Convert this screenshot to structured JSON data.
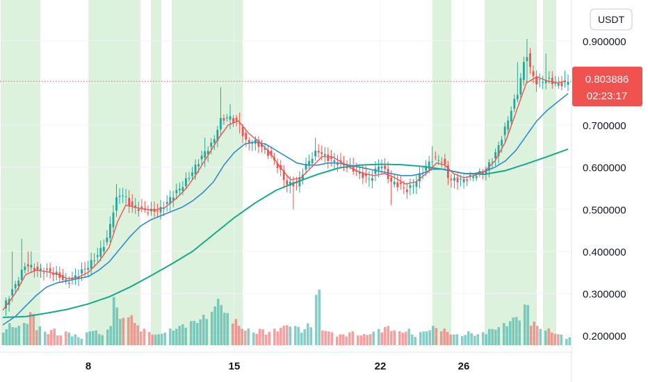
{
  "chart_data": {
    "type": "candlestick",
    "unit_label": "USDT",
    "ylim": [
      0.18,
      0.97
    ],
    "y_ticks": [
      "0.900000",
      "0.800000",
      "0.700000",
      "0.600000",
      "0.500000",
      "0.400000",
      "0.300000",
      "0.200000"
    ],
    "y_tick_values": [
      0.9,
      0.8,
      0.7,
      0.6,
      0.5,
      0.4,
      0.3,
      0.2
    ],
    "x_range": [
      3.8,
      31.2
    ],
    "x_ticks": [
      {
        "label": "8",
        "x": 8
      },
      {
        "label": "15",
        "x": 15
      },
      {
        "label": "22",
        "x": 22
      },
      {
        "label": "26",
        "x": 26
      }
    ],
    "current_price": "0.803886",
    "current_price_value": 0.803886,
    "countdown": "02:23:17",
    "colors": {
      "up": "#26a69a",
      "down": "#ef5350",
      "ma_short": "#ef5350",
      "ma_mid": "#2f8bcc",
      "ma_long": "#17a98b",
      "highlight": "#ddf2dd",
      "grid": "#f0f3fa"
    },
    "highlight_bands": [
      [
        3.8,
        5.7
      ],
      [
        8,
        10.5
      ],
      [
        11,
        11.5
      ],
      [
        12,
        15.4
      ],
      [
        24.5,
        25.4
      ],
      [
        27,
        29.5
      ],
      [
        29.8,
        30.5
      ],
      [
        30.8,
        31.0
      ]
    ],
    "close_path": [
      [
        3.9,
        0.265
      ],
      [
        4.5,
        0.32
      ],
      [
        5.0,
        0.37
      ],
      [
        5.5,
        0.355
      ],
      [
        6.0,
        0.355
      ],
      [
        6.5,
        0.345
      ],
      [
        7.0,
        0.325
      ],
      [
        7.5,
        0.345
      ],
      [
        8.0,
        0.365
      ],
      [
        8.5,
        0.395
      ],
      [
        8.9,
        0.43
      ],
      [
        9.3,
        0.52
      ],
      [
        9.6,
        0.54
      ],
      [
        10.0,
        0.51
      ],
      [
        10.5,
        0.5
      ],
      [
        11.0,
        0.495
      ],
      [
        11.5,
        0.5
      ],
      [
        12.0,
        0.53
      ],
      [
        12.5,
        0.555
      ],
      [
        13.0,
        0.59
      ],
      [
        13.5,
        0.63
      ],
      [
        14.0,
        0.66
      ],
      [
        14.3,
        0.71
      ],
      [
        14.7,
        0.72
      ],
      [
        15.0,
        0.71
      ],
      [
        15.3,
        0.7
      ],
      [
        15.5,
        0.66
      ],
      [
        16.0,
        0.66
      ],
      [
        16.5,
        0.64
      ],
      [
        17.0,
        0.61
      ],
      [
        17.5,
        0.56
      ],
      [
        18.0,
        0.56
      ],
      [
        18.5,
        0.61
      ],
      [
        19.0,
        0.64
      ],
      [
        19.5,
        0.62
      ],
      [
        20.0,
        0.61
      ],
      [
        20.5,
        0.6
      ],
      [
        21.0,
        0.585
      ],
      [
        21.5,
        0.57
      ],
      [
        22.0,
        0.61
      ],
      [
        22.5,
        0.565
      ],
      [
        23.0,
        0.555
      ],
      [
        23.3,
        0.545
      ],
      [
        23.7,
        0.565
      ],
      [
        24.0,
        0.59
      ],
      [
        24.5,
        0.62
      ],
      [
        25.0,
        0.615
      ],
      [
        25.3,
        0.57
      ],
      [
        25.6,
        0.57
      ],
      [
        26.0,
        0.57
      ],
      [
        26.5,
        0.58
      ],
      [
        27.0,
        0.59
      ],
      [
        27.5,
        0.63
      ],
      [
        27.9,
        0.68
      ],
      [
        28.3,
        0.74
      ],
      [
        28.6,
        0.78
      ],
      [
        29.0,
        0.875
      ],
      [
        29.2,
        0.83
      ],
      [
        29.5,
        0.8
      ],
      [
        30.0,
        0.81
      ],
      [
        30.5,
        0.795
      ],
      [
        31.0,
        0.804
      ]
    ],
    "ma_short": [
      [
        3.9,
        0.26
      ],
      [
        4.5,
        0.3
      ],
      [
        5.0,
        0.345
      ],
      [
        5.5,
        0.355
      ],
      [
        6.0,
        0.352
      ],
      [
        6.5,
        0.346
      ],
      [
        7.0,
        0.335
      ],
      [
        7.5,
        0.338
      ],
      [
        8.0,
        0.35
      ],
      [
        8.5,
        0.375
      ],
      [
        9.0,
        0.41
      ],
      [
        9.4,
        0.47
      ],
      [
        9.8,
        0.51
      ],
      [
        10.2,
        0.505
      ],
      [
        10.7,
        0.5
      ],
      [
        11.2,
        0.498
      ],
      [
        11.7,
        0.505
      ],
      [
        12.2,
        0.525
      ],
      [
        12.7,
        0.55
      ],
      [
        13.2,
        0.585
      ],
      [
        13.7,
        0.625
      ],
      [
        14.2,
        0.665
      ],
      [
        14.7,
        0.7
      ],
      [
        15.2,
        0.71
      ],
      [
        15.7,
        0.68
      ],
      [
        16.2,
        0.66
      ],
      [
        16.7,
        0.635
      ],
      [
        17.2,
        0.6
      ],
      [
        17.7,
        0.57
      ],
      [
        18.2,
        0.575
      ],
      [
        18.7,
        0.6
      ],
      [
        19.2,
        0.625
      ],
      [
        19.7,
        0.625
      ],
      [
        20.2,
        0.61
      ],
      [
        20.7,
        0.595
      ],
      [
        21.2,
        0.585
      ],
      [
        21.7,
        0.58
      ],
      [
        22.2,
        0.585
      ],
      [
        22.7,
        0.575
      ],
      [
        23.2,
        0.56
      ],
      [
        23.7,
        0.565
      ],
      [
        24.2,
        0.585
      ],
      [
        24.7,
        0.61
      ],
      [
        25.1,
        0.605
      ],
      [
        25.5,
        0.585
      ],
      [
        26.0,
        0.575
      ],
      [
        26.5,
        0.58
      ],
      [
        27.0,
        0.59
      ],
      [
        27.5,
        0.615
      ],
      [
        28.0,
        0.66
      ],
      [
        28.5,
        0.73
      ],
      [
        29.0,
        0.8
      ],
      [
        29.5,
        0.815
      ],
      [
        30.0,
        0.805
      ],
      [
        30.5,
        0.8
      ],
      [
        30.9,
        0.805
      ]
    ],
    "ma_mid": [
      [
        3.9,
        0.225
      ],
      [
        4.5,
        0.245
      ],
      [
        5.0,
        0.27
      ],
      [
        5.5,
        0.295
      ],
      [
        6.0,
        0.315
      ],
      [
        6.5,
        0.325
      ],
      [
        7.0,
        0.33
      ],
      [
        7.5,
        0.335
      ],
      [
        8.0,
        0.34
      ],
      [
        8.5,
        0.355
      ],
      [
        9.0,
        0.375
      ],
      [
        9.5,
        0.405
      ],
      [
        10.0,
        0.435
      ],
      [
        10.5,
        0.46
      ],
      [
        11.0,
        0.475
      ],
      [
        11.5,
        0.485
      ],
      [
        12.0,
        0.495
      ],
      [
        12.5,
        0.505
      ],
      [
        13.0,
        0.52
      ],
      [
        13.5,
        0.54
      ],
      [
        14.0,
        0.565
      ],
      [
        14.5,
        0.605
      ],
      [
        15.0,
        0.635
      ],
      [
        15.5,
        0.655
      ],
      [
        16.0,
        0.66
      ],
      [
        16.5,
        0.655
      ],
      [
        17.0,
        0.64
      ],
      [
        17.5,
        0.625
      ],
      [
        18.0,
        0.61
      ],
      [
        18.5,
        0.605
      ],
      [
        19.0,
        0.605
      ],
      [
        19.5,
        0.61
      ],
      [
        20.0,
        0.61
      ],
      [
        20.5,
        0.605
      ],
      [
        21.0,
        0.6
      ],
      [
        21.5,
        0.595
      ],
      [
        22.0,
        0.59
      ],
      [
        22.5,
        0.585
      ],
      [
        23.0,
        0.58
      ],
      [
        23.5,
        0.58
      ],
      [
        24.0,
        0.585
      ],
      [
        24.5,
        0.595
      ],
      [
        25.0,
        0.595
      ],
      [
        25.5,
        0.59
      ],
      [
        26.0,
        0.585
      ],
      [
        26.5,
        0.585
      ],
      [
        27.0,
        0.59
      ],
      [
        27.5,
        0.6
      ],
      [
        28.0,
        0.615
      ],
      [
        28.5,
        0.64
      ],
      [
        29.0,
        0.675
      ],
      [
        29.5,
        0.71
      ],
      [
        30.0,
        0.735
      ],
      [
        30.5,
        0.755
      ],
      [
        31.0,
        0.775
      ]
    ],
    "ma_long": [
      [
        3.9,
        0.243
      ],
      [
        5.0,
        0.245
      ],
      [
        6.0,
        0.253
      ],
      [
        7.0,
        0.262
      ],
      [
        8.0,
        0.275
      ],
      [
        9.0,
        0.292
      ],
      [
        10.0,
        0.315
      ],
      [
        11.0,
        0.342
      ],
      [
        12.0,
        0.37
      ],
      [
        13.0,
        0.4
      ],
      [
        14.0,
        0.44
      ],
      [
        15.0,
        0.48
      ],
      [
        16.0,
        0.515
      ],
      [
        17.0,
        0.545
      ],
      [
        18.0,
        0.565
      ],
      [
        19.0,
        0.583
      ],
      [
        20.0,
        0.598
      ],
      [
        21.0,
        0.605
      ],
      [
        22.0,
        0.607
      ],
      [
        23.0,
        0.606
      ],
      [
        24.0,
        0.602
      ],
      [
        25.0,
        0.595
      ],
      [
        26.0,
        0.585
      ],
      [
        27.0,
        0.583
      ],
      [
        28.0,
        0.592
      ],
      [
        29.0,
        0.608
      ],
      [
        30.0,
        0.625
      ],
      [
        31.0,
        0.643
      ]
    ],
    "spikes": [
      [
        4.4,
        0.34,
        0.4
      ],
      [
        4.8,
        0.36,
        0.43
      ],
      [
        5.2,
        0.35,
        0.4
      ],
      [
        9.3,
        0.5,
        0.56
      ],
      [
        13.6,
        0.6,
        0.67
      ],
      [
        14.3,
        0.68,
        0.79
      ],
      [
        14.8,
        0.69,
        0.75
      ],
      [
        15.2,
        0.68,
        0.73
      ],
      [
        17.8,
        0.5,
        0.56
      ],
      [
        18.9,
        0.62,
        0.67
      ],
      [
        22.5,
        0.51,
        0.58
      ],
      [
        24.5,
        0.6,
        0.65
      ],
      [
        28.6,
        0.76,
        0.85
      ],
      [
        29.0,
        0.8,
        0.905
      ],
      [
        30.0,
        0.79,
        0.87
      ],
      [
        30.9,
        0.79,
        0.83
      ]
    ],
    "volume": [
      [
        4.0,
        0.3
      ],
      [
        4.3,
        0.4
      ],
      [
        4.6,
        0.35
      ],
      [
        5.0,
        0.45
      ],
      [
        5.3,
        0.6
      ],
      [
        5.6,
        0.35
      ],
      [
        6.0,
        0.25
      ],
      [
        6.3,
        0.3
      ],
      [
        6.6,
        0.2
      ],
      [
        7.0,
        0.25
      ],
      [
        7.3,
        0.2
      ],
      [
        7.6,
        0.15
      ],
      [
        8.0,
        0.25
      ],
      [
        8.3,
        0.3
      ],
      [
        8.6,
        0.2
      ],
      [
        9.0,
        0.35
      ],
      [
        9.3,
        0.9
      ],
      [
        9.6,
        0.5
      ],
      [
        10.0,
        0.6
      ],
      [
        10.3,
        0.4
      ],
      [
        10.6,
        0.3
      ],
      [
        11.0,
        0.25
      ],
      [
        11.3,
        0.2
      ],
      [
        11.6,
        0.25
      ],
      [
        12.0,
        0.3
      ],
      [
        12.3,
        0.35
      ],
      [
        12.6,
        0.4
      ],
      [
        13.0,
        0.45
      ],
      [
        13.3,
        0.5
      ],
      [
        13.6,
        0.55
      ],
      [
        14.0,
        0.7
      ],
      [
        14.3,
        0.9
      ],
      [
        14.6,
        0.6
      ],
      [
        15.0,
        0.5
      ],
      [
        15.3,
        0.35
      ],
      [
        15.6,
        0.3
      ],
      [
        16.0,
        0.25
      ],
      [
        16.3,
        0.3
      ],
      [
        16.6,
        0.25
      ],
      [
        17.0,
        0.3
      ],
      [
        17.3,
        0.35
      ],
      [
        17.6,
        0.4
      ],
      [
        18.0,
        0.35
      ],
      [
        18.3,
        0.3
      ],
      [
        18.6,
        0.4
      ],
      [
        19.0,
        1.0
      ],
      [
        19.3,
        0.3
      ],
      [
        19.6,
        0.25
      ],
      [
        20.0,
        0.2
      ],
      [
        20.3,
        0.2
      ],
      [
        20.6,
        0.25
      ],
      [
        21.0,
        0.2
      ],
      [
        21.3,
        0.2
      ],
      [
        21.6,
        0.25
      ],
      [
        22.0,
        0.3
      ],
      [
        22.3,
        0.35
      ],
      [
        22.6,
        0.3
      ],
      [
        23.0,
        0.25
      ],
      [
        23.3,
        0.3
      ],
      [
        23.6,
        0.2
      ],
      [
        24.0,
        0.25
      ],
      [
        24.3,
        0.3
      ],
      [
        24.6,
        0.35
      ],
      [
        25.0,
        0.3
      ],
      [
        25.3,
        0.25
      ],
      [
        25.6,
        0.2
      ],
      [
        26.0,
        0.2
      ],
      [
        26.3,
        0.25
      ],
      [
        26.6,
        0.2
      ],
      [
        27.0,
        0.25
      ],
      [
        27.3,
        0.3
      ],
      [
        27.6,
        0.35
      ],
      [
        28.0,
        0.4
      ],
      [
        28.3,
        0.5
      ],
      [
        28.6,
        0.55
      ],
      [
        29.0,
        0.75
      ],
      [
        29.3,
        0.45
      ],
      [
        29.6,
        0.35
      ],
      [
        30.0,
        0.3
      ],
      [
        30.3,
        0.25
      ],
      [
        30.6,
        0.2
      ],
      [
        31.0,
        0.15
      ]
    ]
  }
}
